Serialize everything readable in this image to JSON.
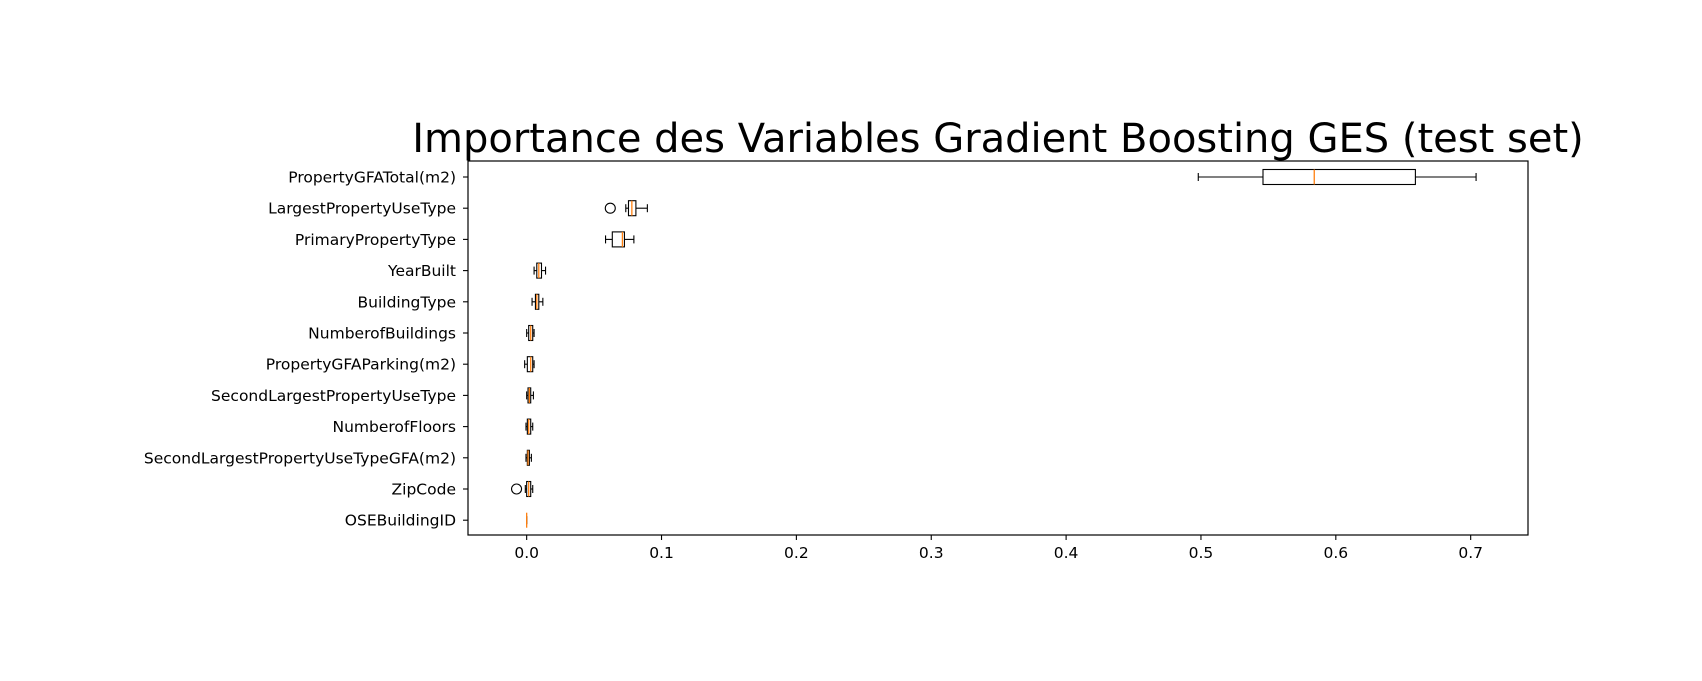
{
  "chart_data": {
    "type": "boxplot",
    "orientation": "horizontal",
    "title": "Importance des Variables Gradient Boosting GES (test set)",
    "xlabel": "",
    "ylabel": "",
    "xlim": [
      -0.0435,
      0.7425
    ],
    "xticks": [
      0.0,
      0.1,
      0.2,
      0.3,
      0.4,
      0.5,
      0.6,
      0.7
    ],
    "xtick_labels": [
      "0.0",
      "0.1",
      "0.2",
      "0.3",
      "0.4",
      "0.5",
      "0.6",
      "0.7"
    ],
    "grid": false,
    "colors": {
      "box": "#000000",
      "median": "#ff7f0e",
      "background": "#ffffff"
    },
    "categories": [
      "PropertyGFATotal(m2)",
      "LargestPropertyUseType",
      "PrimaryPropertyType",
      "YearBuilt",
      "BuildingType",
      "NumberofBuildings",
      "PropertyGFAParking(m2)",
      "SecondLargestPropertyUseType",
      "NumberofFloors",
      "SecondLargestPropertyUseTypeGFA(m2)",
      "ZipCode",
      "OSEBuildingID"
    ],
    "boxes": [
      {
        "name": "PropertyGFATotal(m2)",
        "whislo": 0.498,
        "q1": 0.546,
        "med": 0.584,
        "q3": 0.659,
        "whishi": 0.704,
        "fliers": []
      },
      {
        "name": "LargestPropertyUseType",
        "whislo": 0.0735,
        "q1": 0.0755,
        "med": 0.078,
        "q3": 0.081,
        "whishi": 0.0895,
        "fliers": [
          0.062
        ]
      },
      {
        "name": "PrimaryPropertyType",
        "whislo": 0.0585,
        "q1": 0.0635,
        "med": 0.071,
        "q3": 0.0725,
        "whishi": 0.0795,
        "fliers": []
      },
      {
        "name": "YearBuilt",
        "whislo": 0.0055,
        "q1": 0.0075,
        "med": 0.009,
        "q3": 0.011,
        "whishi": 0.014,
        "fliers": []
      },
      {
        "name": "BuildingType",
        "whislo": 0.004,
        "q1": 0.0065,
        "med": 0.0075,
        "q3": 0.009,
        "whishi": 0.012,
        "fliers": []
      },
      {
        "name": "NumberofBuildings",
        "whislo": 0.0,
        "q1": 0.0015,
        "med": 0.003,
        "q3": 0.0045,
        "whishi": 0.0055,
        "fliers": []
      },
      {
        "name": "PropertyGFAParking(m2)",
        "whislo": -0.0015,
        "q1": 0.0005,
        "med": 0.003,
        "q3": 0.0045,
        "whishi": 0.0055,
        "fliers": []
      },
      {
        "name": "SecondLargestPropertyUseType",
        "whislo": 0.0,
        "q1": 0.001,
        "med": 0.002,
        "q3": 0.003,
        "whishi": 0.005,
        "fliers": []
      },
      {
        "name": "NumberofFloors",
        "whislo": -0.0005,
        "q1": 0.0005,
        "med": 0.0015,
        "q3": 0.003,
        "whishi": 0.0045,
        "fliers": []
      },
      {
        "name": "SecondLargestPropertyUseTypeGFA(m2)",
        "whislo": -0.0005,
        "q1": 0.0005,
        "med": 0.001,
        "q3": 0.002,
        "whishi": 0.0035,
        "fliers": []
      },
      {
        "name": "ZipCode",
        "whislo": -0.001,
        "q1": 0.0,
        "med": 0.0015,
        "q3": 0.003,
        "whishi": 0.0045,
        "fliers": [
          -0.0075
        ]
      },
      {
        "name": "OSEBuildingID",
        "whislo": 0.0,
        "q1": 0.0,
        "med": 0.0,
        "q3": 0.0,
        "whishi": 0.0,
        "fliers": []
      }
    ]
  }
}
